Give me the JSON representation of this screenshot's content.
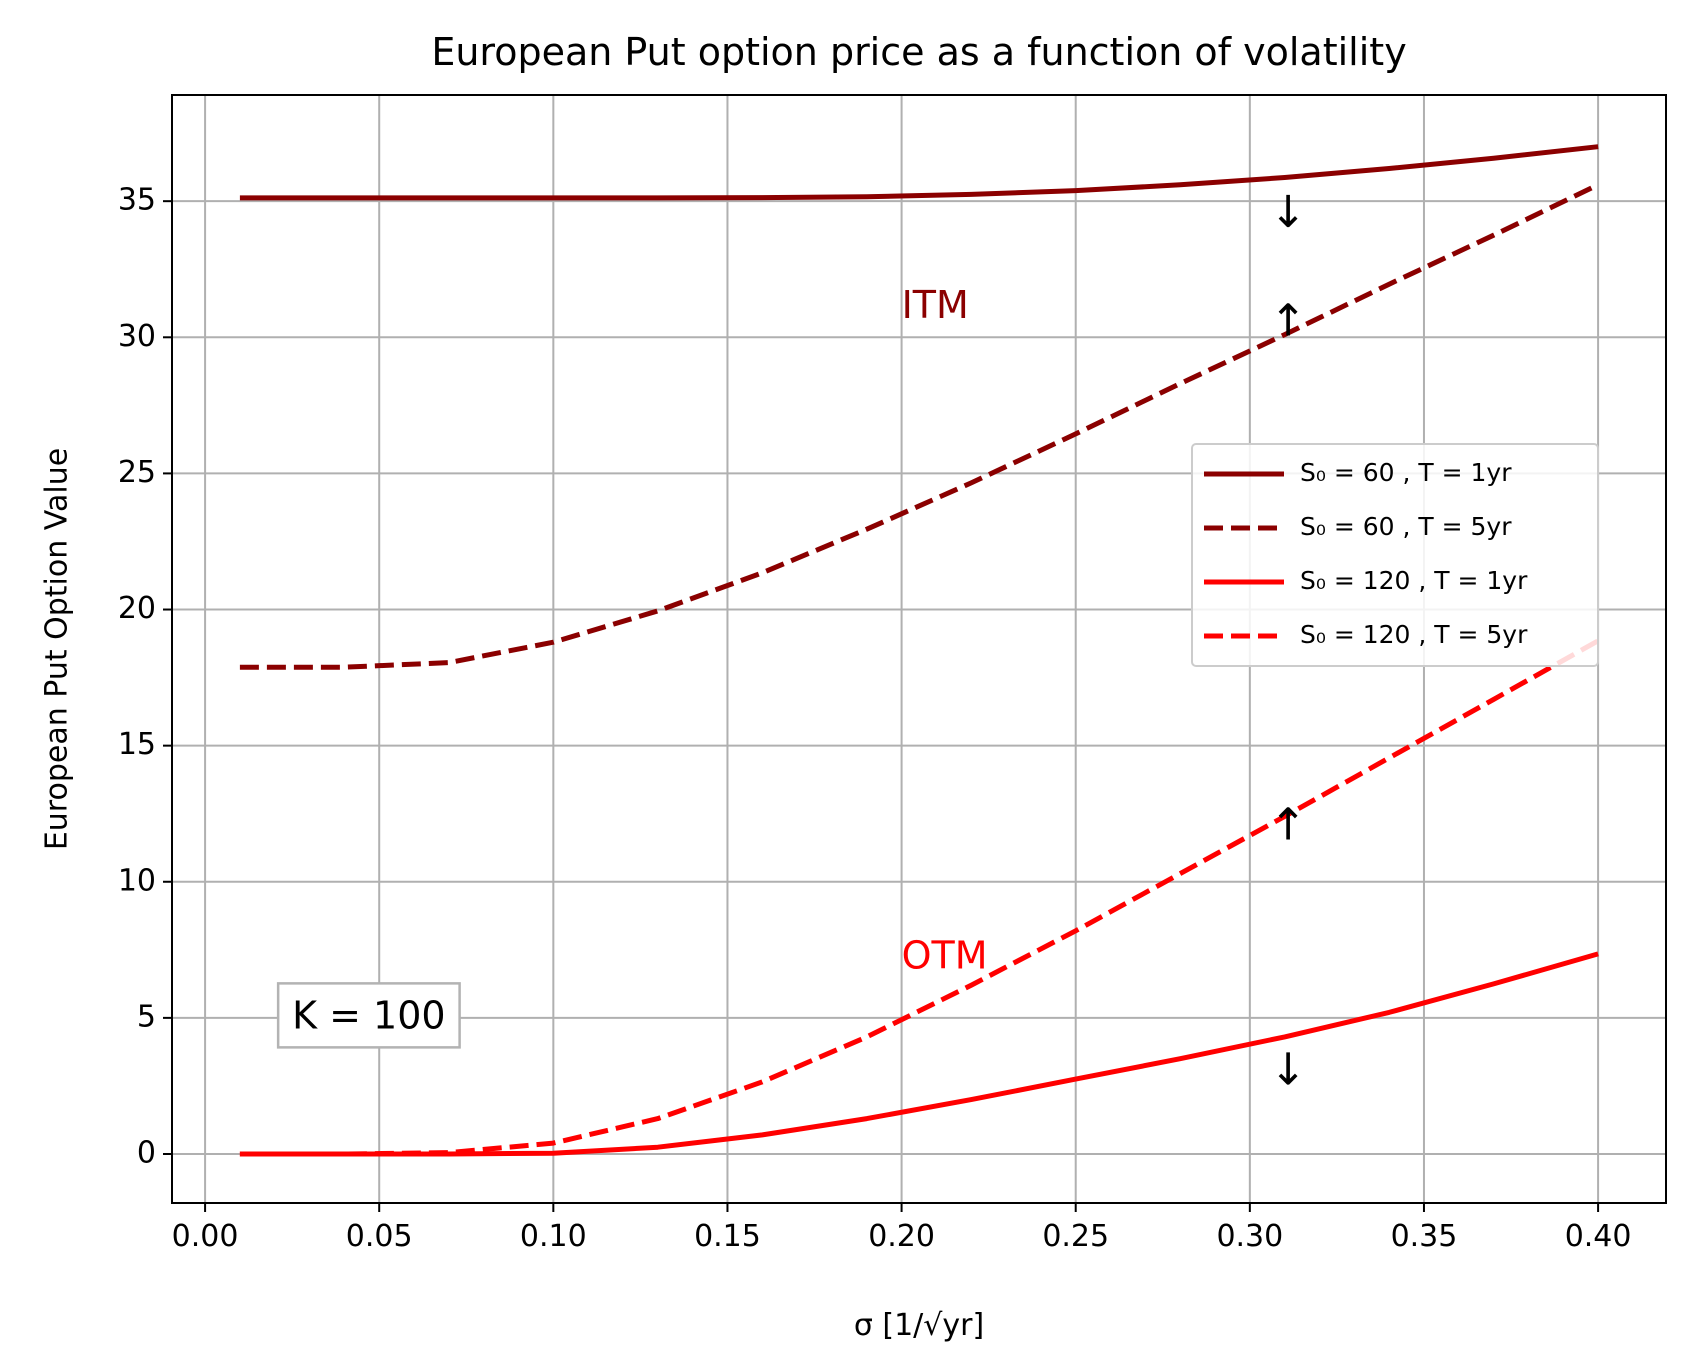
{
  "chart_data": {
    "type": "line",
    "title": "European Put option price as a function of volatility",
    "xlabel": "σ [1/√yr]",
    "ylabel": "European Put Option Value",
    "xlim": [
      -0.0095,
      0.4195
    ],
    "ylim": [
      -1.8,
      38.9
    ],
    "xticks": [
      "0.00",
      "0.05",
      "0.10",
      "0.15",
      "0.20",
      "0.25",
      "0.30",
      "0.35",
      "0.40"
    ],
    "yticks": [
      "0",
      "5",
      "10",
      "15",
      "20",
      "25",
      "30",
      "35"
    ],
    "grid": true,
    "legend_position": "center-right",
    "x": [
      0.01,
      0.04,
      0.07,
      0.1,
      0.13,
      0.16,
      0.19,
      0.22,
      0.25,
      0.28,
      0.31,
      0.34,
      0.37,
      0.4
    ],
    "series": [
      {
        "name": "S₀ = 60 , T = 1yr",
        "color": "#8b0000",
        "dash": "solid",
        "values": [
          35.12,
          35.12,
          35.12,
          35.12,
          35.12,
          35.13,
          35.16,
          35.25,
          35.39,
          35.6,
          35.87,
          36.2,
          36.58,
          37.0
        ]
      },
      {
        "name": "S₀ = 60 , T = 5yr",
        "color": "#8b0000",
        "dash": "dashed",
        "values": [
          17.88,
          17.88,
          18.05,
          18.8,
          19.95,
          21.35,
          22.95,
          24.65,
          26.45,
          28.3,
          30.1,
          31.95,
          33.75,
          35.6
        ]
      },
      {
        "name": "S₀ = 120 , T = 1yr",
        "color": "#ff0000",
        "dash": "solid",
        "values": [
          0.0,
          0.0,
          0.0,
          0.03,
          0.25,
          0.7,
          1.3,
          2.0,
          2.75,
          3.5,
          4.3,
          5.2,
          6.25,
          7.35
        ]
      },
      {
        "name": "S₀ = 120 , T = 5yr",
        "color": "#ff0000",
        "dash": "dashed",
        "values": [
          0.0,
          0.0,
          0.05,
          0.4,
          1.3,
          2.65,
          4.3,
          6.2,
          8.2,
          10.3,
          12.4,
          14.55,
          16.7,
          18.85
        ]
      }
    ],
    "annotations": [
      {
        "text": "ITM",
        "x": 0.2,
        "y": 31.1,
        "color": "#8b0000"
      },
      {
        "text": "OTM",
        "x": 0.2,
        "y": 7.2,
        "color": "#ff0000"
      },
      {
        "text": "↓",
        "x": 0.311,
        "y": 34.5
      },
      {
        "text": "↑",
        "x": 0.311,
        "y": 30.5
      },
      {
        "text": "↑",
        "x": 0.311,
        "y": 12.0
      },
      {
        "text": "↓",
        "x": 0.311,
        "y": 3.0
      },
      {
        "text": "K = 100",
        "x": 0.025,
        "y": 5.0,
        "boxed": true
      }
    ]
  }
}
